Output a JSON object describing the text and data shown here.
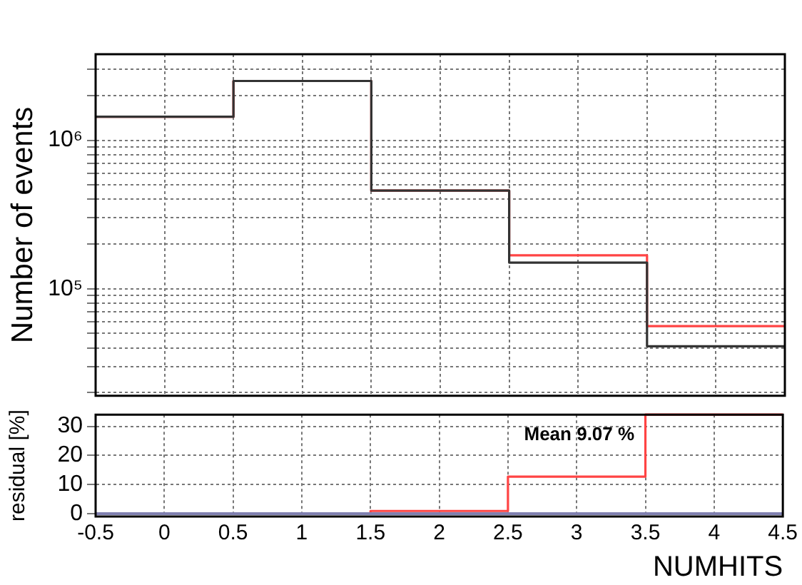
{
  "chart_data": [
    {
      "type": "histogram",
      "ylabel": "Number of events",
      "bins": [
        -0.5,
        0.5,
        1.5,
        2.5,
        3.5,
        4.5
      ],
      "series": [
        {
          "color": "#333333",
          "values": [
            1440000,
            2510000,
            458000,
            150000,
            41000
          ]
        },
        {
          "color": "#ff4444",
          "values": [
            1440000,
            2510000,
            458000,
            168000,
            56000
          ]
        }
      ],
      "xlim": [
        -0.5,
        4.5
      ],
      "xticks": [
        -0.5,
        0,
        0.5,
        1,
        1.5,
        2,
        2.5,
        3,
        3.5,
        4,
        4.5
      ],
      "ylim": [
        19000,
        3800000
      ],
      "log": "y",
      "grid": true,
      "tick_labels": "y",
      "yticks": [
        {
          "value": 20000,
          "label": null
        },
        {
          "value": 30000,
          "label": null
        },
        {
          "value": 40000,
          "label": null
        },
        {
          "value": 50000,
          "label": null
        },
        {
          "value": 60000,
          "label": null
        },
        {
          "value": 70000,
          "label": null
        },
        {
          "value": 80000,
          "label": null
        },
        {
          "value": 90000,
          "label": null
        },
        {
          "value": 100000,
          "label": "10⁵"
        },
        {
          "value": 200000,
          "label": null
        },
        {
          "value": 300000,
          "label": null
        },
        {
          "value": 400000,
          "label": null
        },
        {
          "value": 500000,
          "label": null
        },
        {
          "value": 600000,
          "label": null
        },
        {
          "value": 700000,
          "label": null
        },
        {
          "value": 800000,
          "label": null
        },
        {
          "value": 900000,
          "label": null
        },
        {
          "value": 1000000,
          "label": "10⁶"
        },
        {
          "value": 2000000,
          "label": null
        },
        {
          "value": 3000000,
          "label": null
        }
      ]
    },
    {
      "type": "histogram",
      "xlabel": "NUMHITS",
      "ylabel": "residual [%]",
      "bins": [
        -0.5,
        0.5,
        1.5,
        2.5,
        3.5,
        4.5
      ],
      "series": [
        {
          "color": "#ff4444",
          "values": [
            0,
            0,
            0.9,
            12.7,
            34
          ]
        }
      ],
      "xlim": [
        -0.5,
        4.5
      ],
      "xticks": [
        -0.5,
        0,
        0.5,
        1,
        1.5,
        2,
        2.5,
        3,
        3.5,
        4,
        4.5
      ],
      "ylim": [
        -1,
        34
      ],
      "yticks": [
        0,
        10,
        20,
        30
      ],
      "grid": true,
      "ref_lines": [
        {
          "axis": "y",
          "value": 0,
          "color": "#8080b0"
        }
      ],
      "annotations": [
        "Mean 9.07 %"
      ]
    }
  ]
}
